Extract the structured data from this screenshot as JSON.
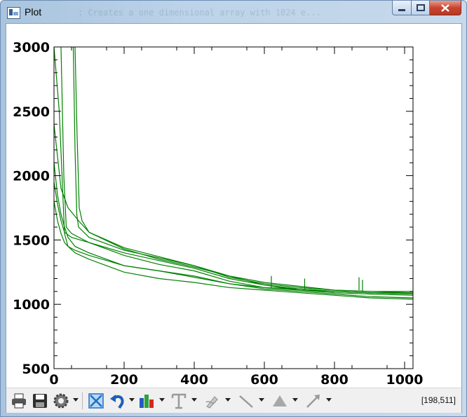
{
  "window": {
    "title": "Plot",
    "background_text": "; Creates a one dimensional array with 1024 e..."
  },
  "status": {
    "cursor_readout": "[198,511]"
  },
  "colors": {
    "series": "#008000",
    "axis": "#000000",
    "background": "#ffffff"
  },
  "toolbar": {
    "items": [
      "print-icon",
      "save-icon",
      "gear-icon",
      "fit-to-window-icon",
      "undo-icon",
      "bar-chart-icon",
      "text-annotation-icon",
      "pen-annotation-icon",
      "line-annotation-icon",
      "polygon-annotation-icon",
      "arrow-annotation-icon"
    ]
  },
  "chart_data": {
    "type": "line",
    "title": "",
    "xlabel": "",
    "ylabel": "",
    "xlim": [
      0,
      1024
    ],
    "ylim": [
      500,
      3000
    ],
    "xticks": [
      "0",
      "200",
      "400",
      "600",
      "800",
      "1000"
    ],
    "yticks": [
      "500",
      "1000",
      "1500",
      "2000",
      "2500",
      "3000"
    ],
    "grid": false,
    "series_color": "#008000",
    "series": [
      {
        "x": [
          0,
          10,
          20,
          30,
          40,
          60,
          100,
          200,
          300,
          400,
          500,
          600,
          700,
          800,
          900,
          1024
        ],
        "values": [
          1800,
          1650,
          1550,
          1480,
          1450,
          1400,
          1350,
          1250,
          1200,
          1170,
          1130,
          1110,
          1090,
          1070,
          1050,
          1040
        ]
      },
      {
        "x": [
          0,
          10,
          20,
          30,
          40,
          60,
          100,
          200,
          300,
          400,
          500,
          600,
          700,
          800,
          900,
          1024
        ],
        "values": [
          2100,
          1850,
          1700,
          1600,
          1520,
          1450,
          1400,
          1300,
          1260,
          1220,
          1160,
          1120,
          1100,
          1080,
          1060,
          1050
        ]
      },
      {
        "x": [
          0,
          15,
          30,
          40,
          60,
          100,
          200,
          300,
          400,
          500,
          600,
          700,
          800,
          900,
          1024
        ],
        "values": [
          3000,
          2500,
          1550,
          1450,
          1420,
          1380,
          1300,
          1260,
          1210,
          1160,
          1130,
          1110,
          1090,
          1080,
          1070
        ]
      },
      {
        "x": [
          20,
          28,
          35,
          50,
          100,
          200,
          300,
          400,
          500,
          600,
          700,
          800,
          900,
          1024
        ],
        "values": [
          3000,
          2000,
          1600,
          1550,
          1480,
          1400,
          1340,
          1280,
          1200,
          1150,
          1110,
          1100,
          1090,
          1080
        ]
      },
      {
        "x": [
          55,
          60,
          65,
          70,
          100,
          200,
          300,
          400,
          500,
          600,
          700,
          800,
          900,
          1024
        ],
        "values": [
          3000,
          2200,
          1700,
          1600,
          1520,
          1420,
          1360,
          1300,
          1220,
          1150,
          1120,
          1100,
          1090,
          1090
        ]
      },
      {
        "x": [
          60,
          66,
          72,
          80,
          100,
          200,
          300,
          400,
          500,
          600,
          700,
          800,
          900,
          1024
        ],
        "values": [
          3000,
          2300,
          1750,
          1650,
          1560,
          1440,
          1370,
          1300,
          1210,
          1160,
          1130,
          1110,
          1100,
          1100
        ]
      },
      {
        "x": [
          0,
          20,
          40,
          70,
          100,
          200,
          300,
          400,
          500,
          600,
          700,
          800,
          900,
          1024
        ],
        "values": [
          2400,
          1900,
          1750,
          1650,
          1560,
          1430,
          1350,
          1290,
          1220,
          1170,
          1140,
          1110,
          1100,
          1090
        ]
      },
      {
        "x": [
          0,
          10,
          20,
          30,
          50,
          100,
          200,
          300,
          400,
          500,
          600,
          700,
          800,
          900,
          1024
        ],
        "values": [
          1950,
          1780,
          1650,
          1560,
          1520,
          1480,
          1380,
          1310,
          1260,
          1180,
          1130,
          1120,
          1100,
          1090,
          1080
        ]
      }
    ],
    "annotations_spikes": [
      {
        "x": 620,
        "values": [
          1130,
          1220
        ]
      },
      {
        "x": 715,
        "values": [
          1120,
          1200
        ]
      },
      {
        "x": 870,
        "values": [
          1110,
          1210
        ]
      },
      {
        "x": 880,
        "values": [
          1105,
          1190
        ]
      }
    ]
  }
}
